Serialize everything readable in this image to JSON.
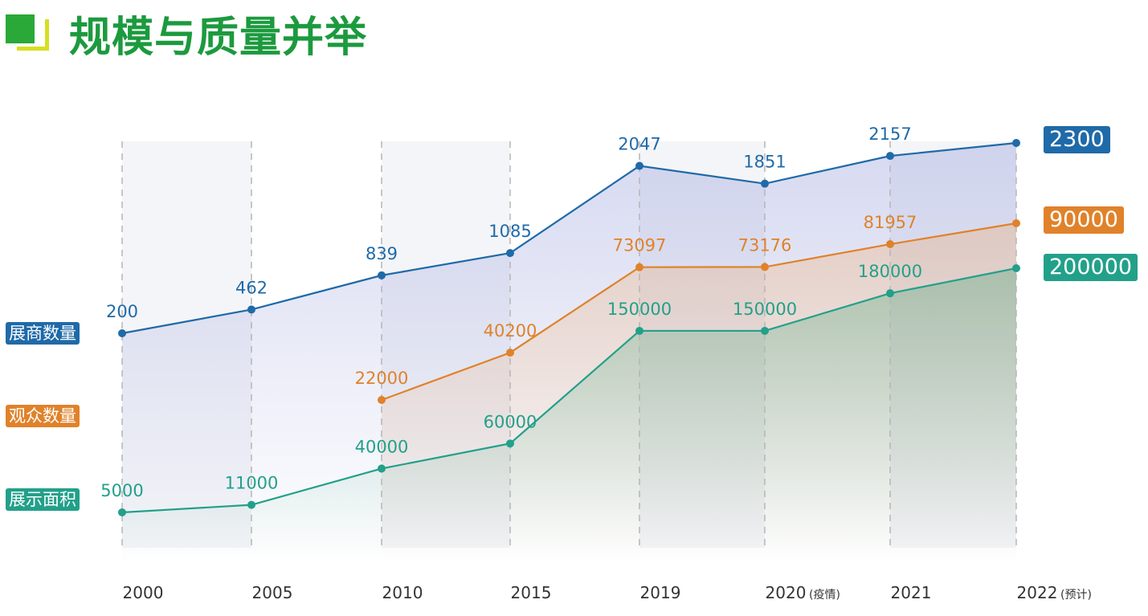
{
  "header": {
    "title": "规模与质量并举"
  },
  "chart_data": {
    "type": "line",
    "title": "规模与质量并举",
    "categories": [
      "2000",
      "2005",
      "2010",
      "2015",
      "2019",
      "2020",
      "2021",
      "2022"
    ],
    "category_notes": [
      "",
      "",
      "",
      "",
      "",
      "(疫情)",
      "",
      "(预计)"
    ],
    "grid": "vertical dashed",
    "series": [
      {
        "name": "展商数量",
        "color": "#1f6aa8",
        "values": [
          200,
          462,
          839,
          1085,
          2047,
          1851,
          2157,
          2300
        ]
      },
      {
        "name": "观众数量",
        "color": "#e0822a",
        "values": [
          null,
          null,
          22000,
          40200,
          73097,
          73176,
          81957,
          90000
        ]
      },
      {
        "name": "展示面积",
        "color": "#22a08a",
        "values": [
          5000,
          11000,
          40000,
          60000,
          150000,
          150000,
          180000,
          200000
        ]
      }
    ]
  }
}
